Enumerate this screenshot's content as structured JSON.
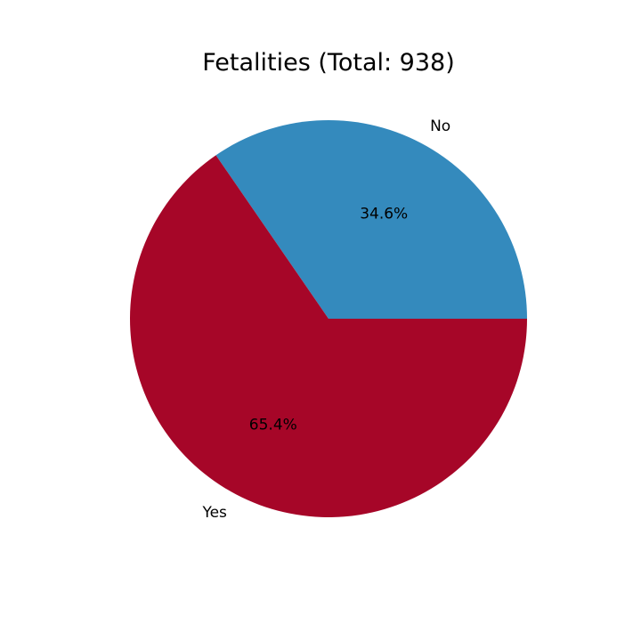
{
  "chart_data": {
    "type": "pie",
    "title": "Fetalities (Total: 938)",
    "labels": [
      "No",
      "Yes"
    ],
    "values": [
      34.6,
      65.4
    ],
    "percent_labels": [
      "34.6%",
      "65.4%"
    ],
    "colors": [
      "#348abd",
      "#a60628"
    ],
    "start_angle_deg": 0,
    "direction": "counterclockwise",
    "legend": "none"
  }
}
